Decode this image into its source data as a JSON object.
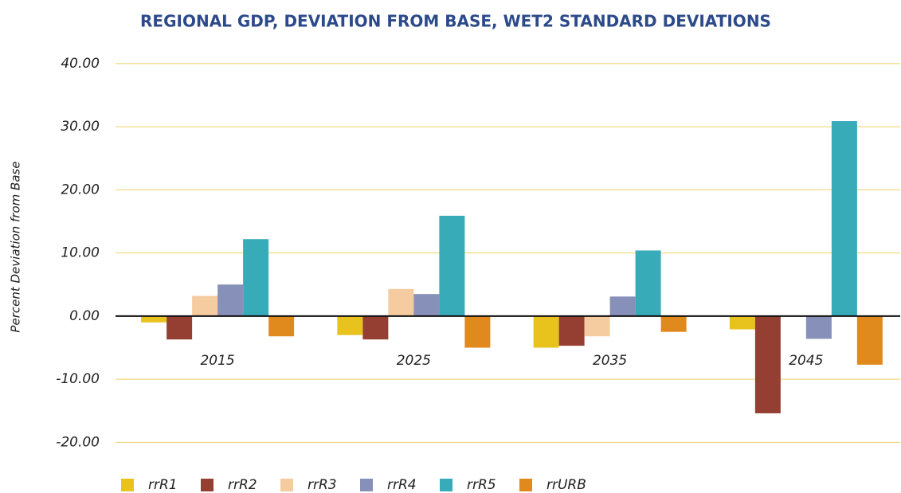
{
  "chart_data": {
    "type": "bar",
    "title": "REGIONAL GDP, DEVIATION FROM BASE, WET2 STANDARD DEVIATIONS",
    "y_label": "Percent Deviation from Base",
    "categories": [
      "2015",
      "2025",
      "2035",
      "2045"
    ],
    "series": [
      {
        "name": "rrR1",
        "color": "#e8c31e",
        "values": [
          -1.0,
          -3.0,
          -5.0,
          -2.1
        ]
      },
      {
        "name": "rrR2",
        "color": "#953f33",
        "values": [
          -3.7,
          -3.7,
          -4.7,
          -15.4
        ]
      },
      {
        "name": "rrR3",
        "color": "#f5cba0",
        "values": [
          3.2,
          4.3,
          -3.2,
          0
        ]
      },
      {
        "name": "rrR4",
        "color": "#8790b8",
        "values": [
          5.0,
          3.5,
          3.1,
          -3.6
        ]
      },
      {
        "name": "rrR5",
        "color": "#38abb8",
        "values": [
          12.2,
          15.9,
          10.4,
          30.9
        ]
      },
      {
        "name": "rrURB",
        "color": "#e08a1e",
        "values": [
          -3.2,
          -5.0,
          -2.5,
          -7.7
        ]
      }
    ],
    "ylim": [
      -23,
      41
    ],
    "yticks": [
      {
        "value": -20,
        "label": "-20.00"
      },
      {
        "value": -10,
        "label": "-10.00"
      },
      {
        "value": 0,
        "label": "0.00"
      },
      {
        "value": 10,
        "label": "10.00"
      },
      {
        "value": 20,
        "label": "20.00"
      },
      {
        "value": 30,
        "label": "30.00"
      },
      {
        "value": 40,
        "label": "40.00"
      }
    ],
    "grid": true,
    "grid_color": "#ecd36a",
    "legend": "bottom"
  }
}
